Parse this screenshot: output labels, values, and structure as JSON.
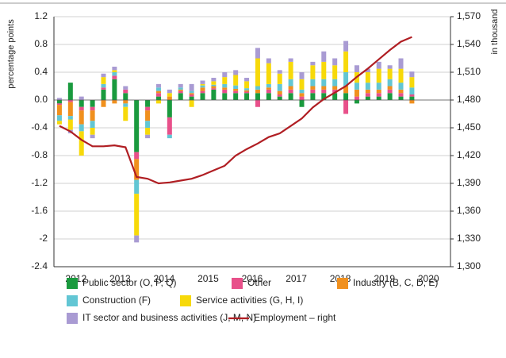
{
  "chart_data": {
    "type": "bar",
    "ylabel": "percentage points",
    "y2label": "in thousand",
    "xlim": [
      2012,
      2021
    ],
    "xticks": [
      {
        "value": 2012.5,
        "label": "2012"
      },
      {
        "value": 2013.5,
        "label": "2013"
      },
      {
        "value": 2014.5,
        "label": "2014"
      },
      {
        "value": 2015.5,
        "label": "2015"
      },
      {
        "value": 2016.5,
        "label": "2016"
      },
      {
        "value": 2017.5,
        "label": "2017"
      },
      {
        "value": 2018.5,
        "label": "2018"
      },
      {
        "value": 2019.5,
        "label": "2019"
      },
      {
        "value": 2020.5,
        "label": "2020"
      }
    ],
    "x": [
      2012.125,
      2012.375,
      2012.625,
      2012.875,
      2013.125,
      2013.375,
      2013.625,
      2013.875,
      2014.125,
      2014.375,
      2014.625,
      2014.875,
      2015.125,
      2015.375,
      2015.625,
      2015.875,
      2016.125,
      2016.375,
      2016.625,
      2016.875,
      2017.125,
      2017.375,
      2017.625,
      2017.875,
      2018.125,
      2018.375,
      2018.625,
      2018.875,
      2019.125,
      2019.375,
      2019.625,
      2019.875,
      2020.125
    ],
    "ylim": [
      -2.4,
      1.2
    ],
    "yticks": [
      -2.4,
      -2.0,
      -1.6,
      -1.2,
      -0.8,
      -0.4,
      {
        "value": 0,
        "label": "0.0"
      },
      0.4,
      0.8,
      1.2
    ],
    "y2lim": [
      1300,
      1570
    ],
    "y2ticks": [
      {
        "value": 1300,
        "label": "1,300"
      },
      {
        "value": 1330,
        "label": "1,330"
      },
      {
        "value": 1360,
        "label": "1,360"
      },
      {
        "value": 1390,
        "label": "1,390"
      },
      {
        "value": 1420,
        "label": "1,420"
      },
      {
        "value": 1450,
        "label": "1,450"
      },
      {
        "value": 1480,
        "label": "1,480"
      },
      {
        "value": 1510,
        "label": "1,510"
      },
      {
        "value": 1540,
        "label": "1,540"
      },
      {
        "value": 1570,
        "label": "1,570"
      }
    ],
    "grid": true,
    "series": [
      {
        "name": "Public sector (O, P, Q)",
        "color": "#1a9a3e",
        "values": [
          -0.05,
          0.25,
          -0.1,
          -0.1,
          0.15,
          0.3,
          0.1,
          -0.75,
          -0.1,
          0.05,
          -0.25,
          0.1,
          0.05,
          0.1,
          0.15,
          0.1,
          0.1,
          0.1,
          0.1,
          0.1,
          0.05,
          0.1,
          -0.1,
          0.1,
          0.1,
          0.1,
          0.1,
          -0.05,
          0.05,
          0.05,
          0.1,
          0.05,
          0.05
        ]
      },
      {
        "name": "Other",
        "color": "#e8508a",
        "values": [
          -0.02,
          -0.03,
          -0.05,
          -0.05,
          0.03,
          0.05,
          0.05,
          -0.1,
          -0.05,
          0.05,
          -0.25,
          0.03,
          0.03,
          0.03,
          0.02,
          0.05,
          0.03,
          0.02,
          -0.1,
          0.05,
          0.03,
          0.05,
          0.05,
          0.05,
          0.05,
          0.05,
          -0.2,
          0.05,
          0.05,
          0.05,
          0.05,
          0.05,
          0.03
        ]
      },
      {
        "name": "Industry (B, C, D, E)",
        "color": "#f0901e",
        "values": [
          -0.15,
          -0.2,
          -0.2,
          -0.15,
          -0.1,
          -0.05,
          -0.05,
          -0.3,
          -0.15,
          0.03,
          0.05,
          0.02,
          0.02,
          0.05,
          0.03,
          0.03,
          0.03,
          0.02,
          0.05,
          0.03,
          0.05,
          0.05,
          0.05,
          0.05,
          0.05,
          0.05,
          0.1,
          0.1,
          0.05,
          0.05,
          0.05,
          0.05,
          -0.05
        ]
      },
      {
        "name": "Construction (F)",
        "color": "#62c6d4",
        "values": [
          -0.08,
          -0.05,
          -0.1,
          -0.1,
          0.05,
          0.05,
          -0.05,
          -0.2,
          -0.1,
          0.05,
          -0.05,
          0.03,
          0.03,
          0.03,
          0.02,
          0.05,
          0.05,
          0.03,
          0.05,
          0.05,
          0.1,
          0.1,
          0.05,
          0.1,
          0.1,
          0.1,
          0.2,
          0.1,
          0.1,
          0.1,
          0.1,
          0.1,
          0.1
        ]
      },
      {
        "name": "Service activities (G, H, I)",
        "color": "#f7d90a",
        "values": [
          -0.05,
          -0.15,
          -0.35,
          -0.1,
          0.1,
          0.03,
          -0.2,
          -0.6,
          -0.1,
          -0.05,
          0.05,
          0.0,
          -0.1,
          0.02,
          0.05,
          0.1,
          0.15,
          0.1,
          0.4,
          0.3,
          0.15,
          0.25,
          0.15,
          0.2,
          0.25,
          0.2,
          0.3,
          0.15,
          0.15,
          0.2,
          0.15,
          0.2,
          0.15
        ]
      },
      {
        "name": "IT sector and business activities (J, M, N)",
        "color": "#a99bd3",
        "values": [
          0.03,
          -0.05,
          0.05,
          -0.05,
          0.05,
          0.05,
          0.05,
          -0.1,
          -0.05,
          0.05,
          0.05,
          0.05,
          0.1,
          0.05,
          0.05,
          0.07,
          0.07,
          0.05,
          0.15,
          0.07,
          0.05,
          0.05,
          0.1,
          0.05,
          0.15,
          0.1,
          0.15,
          0.1,
          0.05,
          0.1,
          0.05,
          0.15,
          0.08
        ]
      },
      {
        "name": "Employment – right",
        "type": "line",
        "axis": "y2",
        "color": "#b01e23",
        "values": [
          1452,
          1446,
          1437,
          1430,
          1430,
          1431,
          1429,
          1397,
          1395,
          1390,
          1391,
          1393,
          1395,
          1399,
          1404,
          1409,
          1420,
          1427,
          1433,
          1440,
          1444,
          1452,
          1460,
          1472,
          1481,
          1488,
          1495,
          1505,
          1514,
          1524,
          1534,
          1543,
          1548
        ]
      }
    ]
  }
}
